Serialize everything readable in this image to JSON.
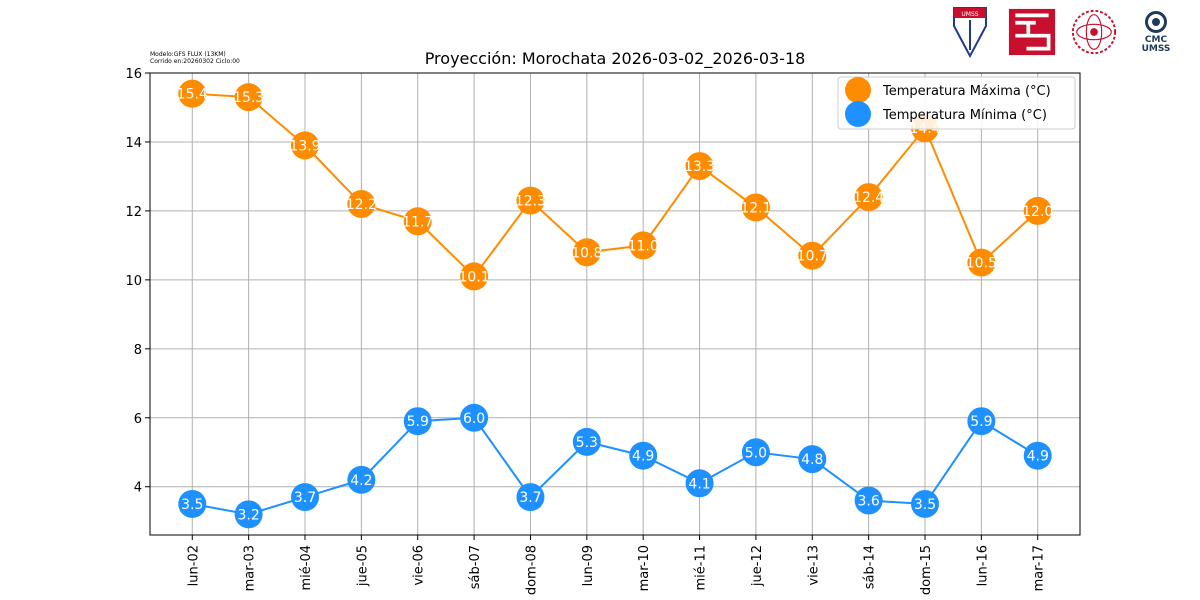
{
  "header": {
    "model_line": "Modelo:GFS FLUX (13KM)",
    "run_line": "Corrido en:20260302 Ciclo:00",
    "logos": [
      {
        "name": "umss-shield-logo",
        "text": "UMSS"
      },
      {
        "name": "red-emblem-logo"
      },
      {
        "name": "red-seal-logo"
      },
      {
        "name": "cmc-umss-logo",
        "text": "CMC",
        "subtext": "UMSS"
      }
    ]
  },
  "colors": {
    "max": "#ff8c00",
    "min": "#1e90ff",
    "grid": "#b0b0b0"
  },
  "chart_data": {
    "type": "line",
    "title": "Proyección: Morochata 2026-03-02_2026-03-18",
    "xlabel": "",
    "ylabel": "",
    "ylim": [
      2.6,
      16.0
    ],
    "yticks": [
      4,
      6,
      8,
      10,
      12,
      14,
      16
    ],
    "grid": true,
    "legend_position": "top-right",
    "categories": [
      "lun-02",
      "mar-03",
      "mié-04",
      "jue-05",
      "vie-06",
      "sáb-07",
      "dom-08",
      "lun-09",
      "mar-10",
      "mié-11",
      "jue-12",
      "vie-13",
      "sáb-14",
      "dom-15",
      "lun-16",
      "mar-17"
    ],
    "series": [
      {
        "name": "Temperatura Máxima  (°C)",
        "values": [
          15.4,
          15.3,
          13.9,
          12.2,
          11.7,
          10.1,
          12.3,
          10.8,
          11.0,
          13.3,
          12.1,
          10.7,
          12.4,
          14.4,
          10.5,
          12.0
        ]
      },
      {
        "name": "Temperatura Mínima  (°C)",
        "values": [
          3.5,
          3.2,
          3.7,
          4.2,
          5.9,
          6.0,
          3.7,
          5.3,
          4.9,
          4.1,
          5.0,
          4.8,
          3.6,
          3.5,
          5.9,
          4.9
        ]
      }
    ]
  }
}
